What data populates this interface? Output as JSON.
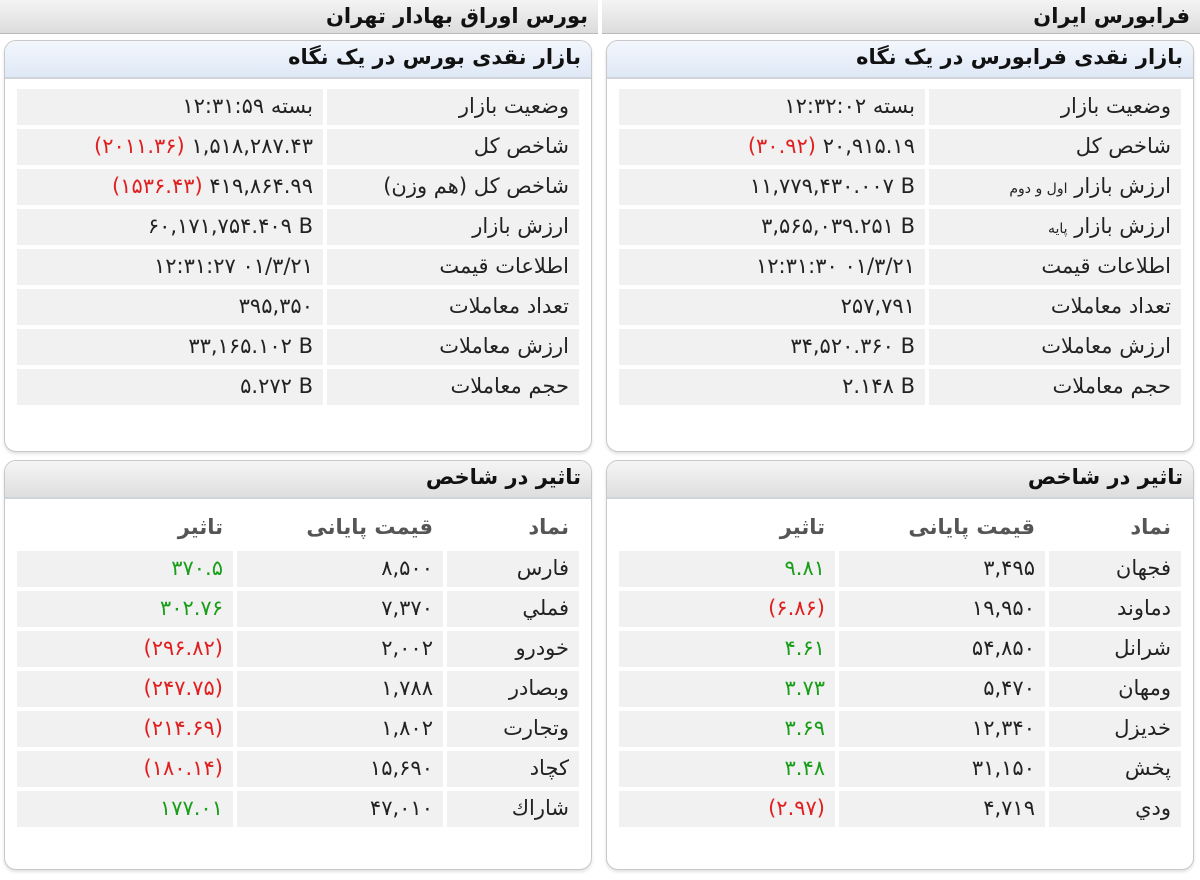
{
  "left": {
    "header": "بورس اوراق بهادار تهران",
    "snapshot": {
      "title": "بازار نقدی بورس در یک نگاه",
      "rows": [
        {
          "label": "وضعیت بازار",
          "value": "بسته ۱۲:۳۱:۵۹"
        },
        {
          "label": "شاخص کل",
          "value": "۱,۵۱۸,۲۸۷.۴۳",
          "change": "(۲۰۱۱.۳۶)"
        },
        {
          "label": "شاخص کل (هم وزن)",
          "value": "۴۱۹,۸۶۴.۹۹",
          "change": "(۱۵۳۶.۴۳)"
        },
        {
          "label": "ارزش بازار",
          "value": "۶۰,۱۷۱,۷۵۴.۴۰۹ B"
        },
        {
          "label": "اطلاعات قیمت",
          "value": "۱۲:۳۱:۲۷ ۰۱/۳/۲۱"
        },
        {
          "label": "تعداد معاملات",
          "value": "۳۹۵,۳۵۰"
        },
        {
          "label": "ارزش معاملات",
          "value": "۳۳,۱۶۵.۱۰۲ B"
        },
        {
          "label": "حجم معاملات",
          "value": "۵.۲۷۲ B"
        }
      ]
    },
    "impact": {
      "title": "تاثیر در شاخص",
      "headers": {
        "symbol": "نماد",
        "price": "قیمت پایانی",
        "effect": "تاثیر"
      },
      "rows": [
        {
          "symbol": "فارس",
          "price": "۸,۵۰۰",
          "effect": "۳۷۰.۵",
          "trend": "pos"
        },
        {
          "symbol": "فملي",
          "price": "۷,۳۷۰",
          "effect": "۳۰۲.۷۶",
          "trend": "pos"
        },
        {
          "symbol": "خودرو",
          "price": "۲,۰۰۲",
          "effect": "(۲۹۶.۸۲)",
          "trend": "neg"
        },
        {
          "symbol": "وبصادر",
          "price": "۱,۷۸۸",
          "effect": "(۲۴۷.۷۵)",
          "trend": "neg"
        },
        {
          "symbol": "وتجارت",
          "price": "۱,۸۰۲",
          "effect": "(۲۱۴.۶۹)",
          "trend": "neg"
        },
        {
          "symbol": "کچاد",
          "price": "۱۵,۶۹۰",
          "effect": "(۱۸۰.۱۴)",
          "trend": "neg"
        },
        {
          "symbol": "شاراك",
          "price": "۴۷,۰۱۰",
          "effect": "۱۷۷.۰۱",
          "trend": "pos"
        }
      ]
    }
  },
  "right": {
    "header": "فرابورس ایران",
    "snapshot": {
      "title": "بازار نقدی فرابورس در یک نگاه",
      "rows": [
        {
          "label": "وضعیت بازار",
          "value": "بسته ۱۲:۳۲:۰۲"
        },
        {
          "label": "شاخص کل",
          "value": "۲۰,۹۱۵.۱۹",
          "change": "(۳۰.۹۲)"
        },
        {
          "label": "ارزش بازار",
          "label_small": "اول و دوم",
          "value": "۱۱,۷۷۹,۴۳۰.۰۰۷ B"
        },
        {
          "label": "ارزش بازار",
          "label_small": "پایه",
          "value": "۳,۵۶۵,۰۳۹.۲۵۱ B"
        },
        {
          "label": "اطلاعات قیمت",
          "value": "۱۲:۳۱:۳۰ ۰۱/۳/۲۱"
        },
        {
          "label": "تعداد معاملات",
          "value": "۲۵۷,۷۹۱"
        },
        {
          "label": "ارزش معاملات",
          "value": "۳۴,۵۲۰.۳۶۰ B"
        },
        {
          "label": "حجم معاملات",
          "value": "۲.۱۴۸ B"
        }
      ]
    },
    "impact": {
      "title": "تاثیر در شاخص",
      "headers": {
        "symbol": "نماد",
        "price": "قیمت پایانی",
        "effect": "تاثیر"
      },
      "rows": [
        {
          "symbol": "فجهان",
          "price": "۳,۴۹۵",
          "effect": "۹.۸۱",
          "trend": "pos"
        },
        {
          "symbol": "دماوند",
          "price": "۱۹,۹۵۰",
          "effect": "(۶.۸۶)",
          "trend": "neg"
        },
        {
          "symbol": "شرانل",
          "price": "۵۴,۸۵۰",
          "effect": "۴.۶۱",
          "trend": "pos"
        },
        {
          "symbol": "ومهان",
          "price": "۵,۴۷۰",
          "effect": "۳.۷۳",
          "trend": "pos"
        },
        {
          "symbol": "خدیزل",
          "price": "۱۲,۳۴۰",
          "effect": "۳.۶۹",
          "trend": "pos"
        },
        {
          "symbol": "پخش",
          "price": "۳۱,۱۵۰",
          "effect": "۳.۴۸",
          "trend": "pos"
        },
        {
          "symbol": "ودي",
          "price": "۴,۷۱۹",
          "effect": "(۲.۹۷)",
          "trend": "neg"
        }
      ]
    },
    "colors": {
      "positive": "#1a9e1a",
      "negative": "#e02020"
    }
  }
}
